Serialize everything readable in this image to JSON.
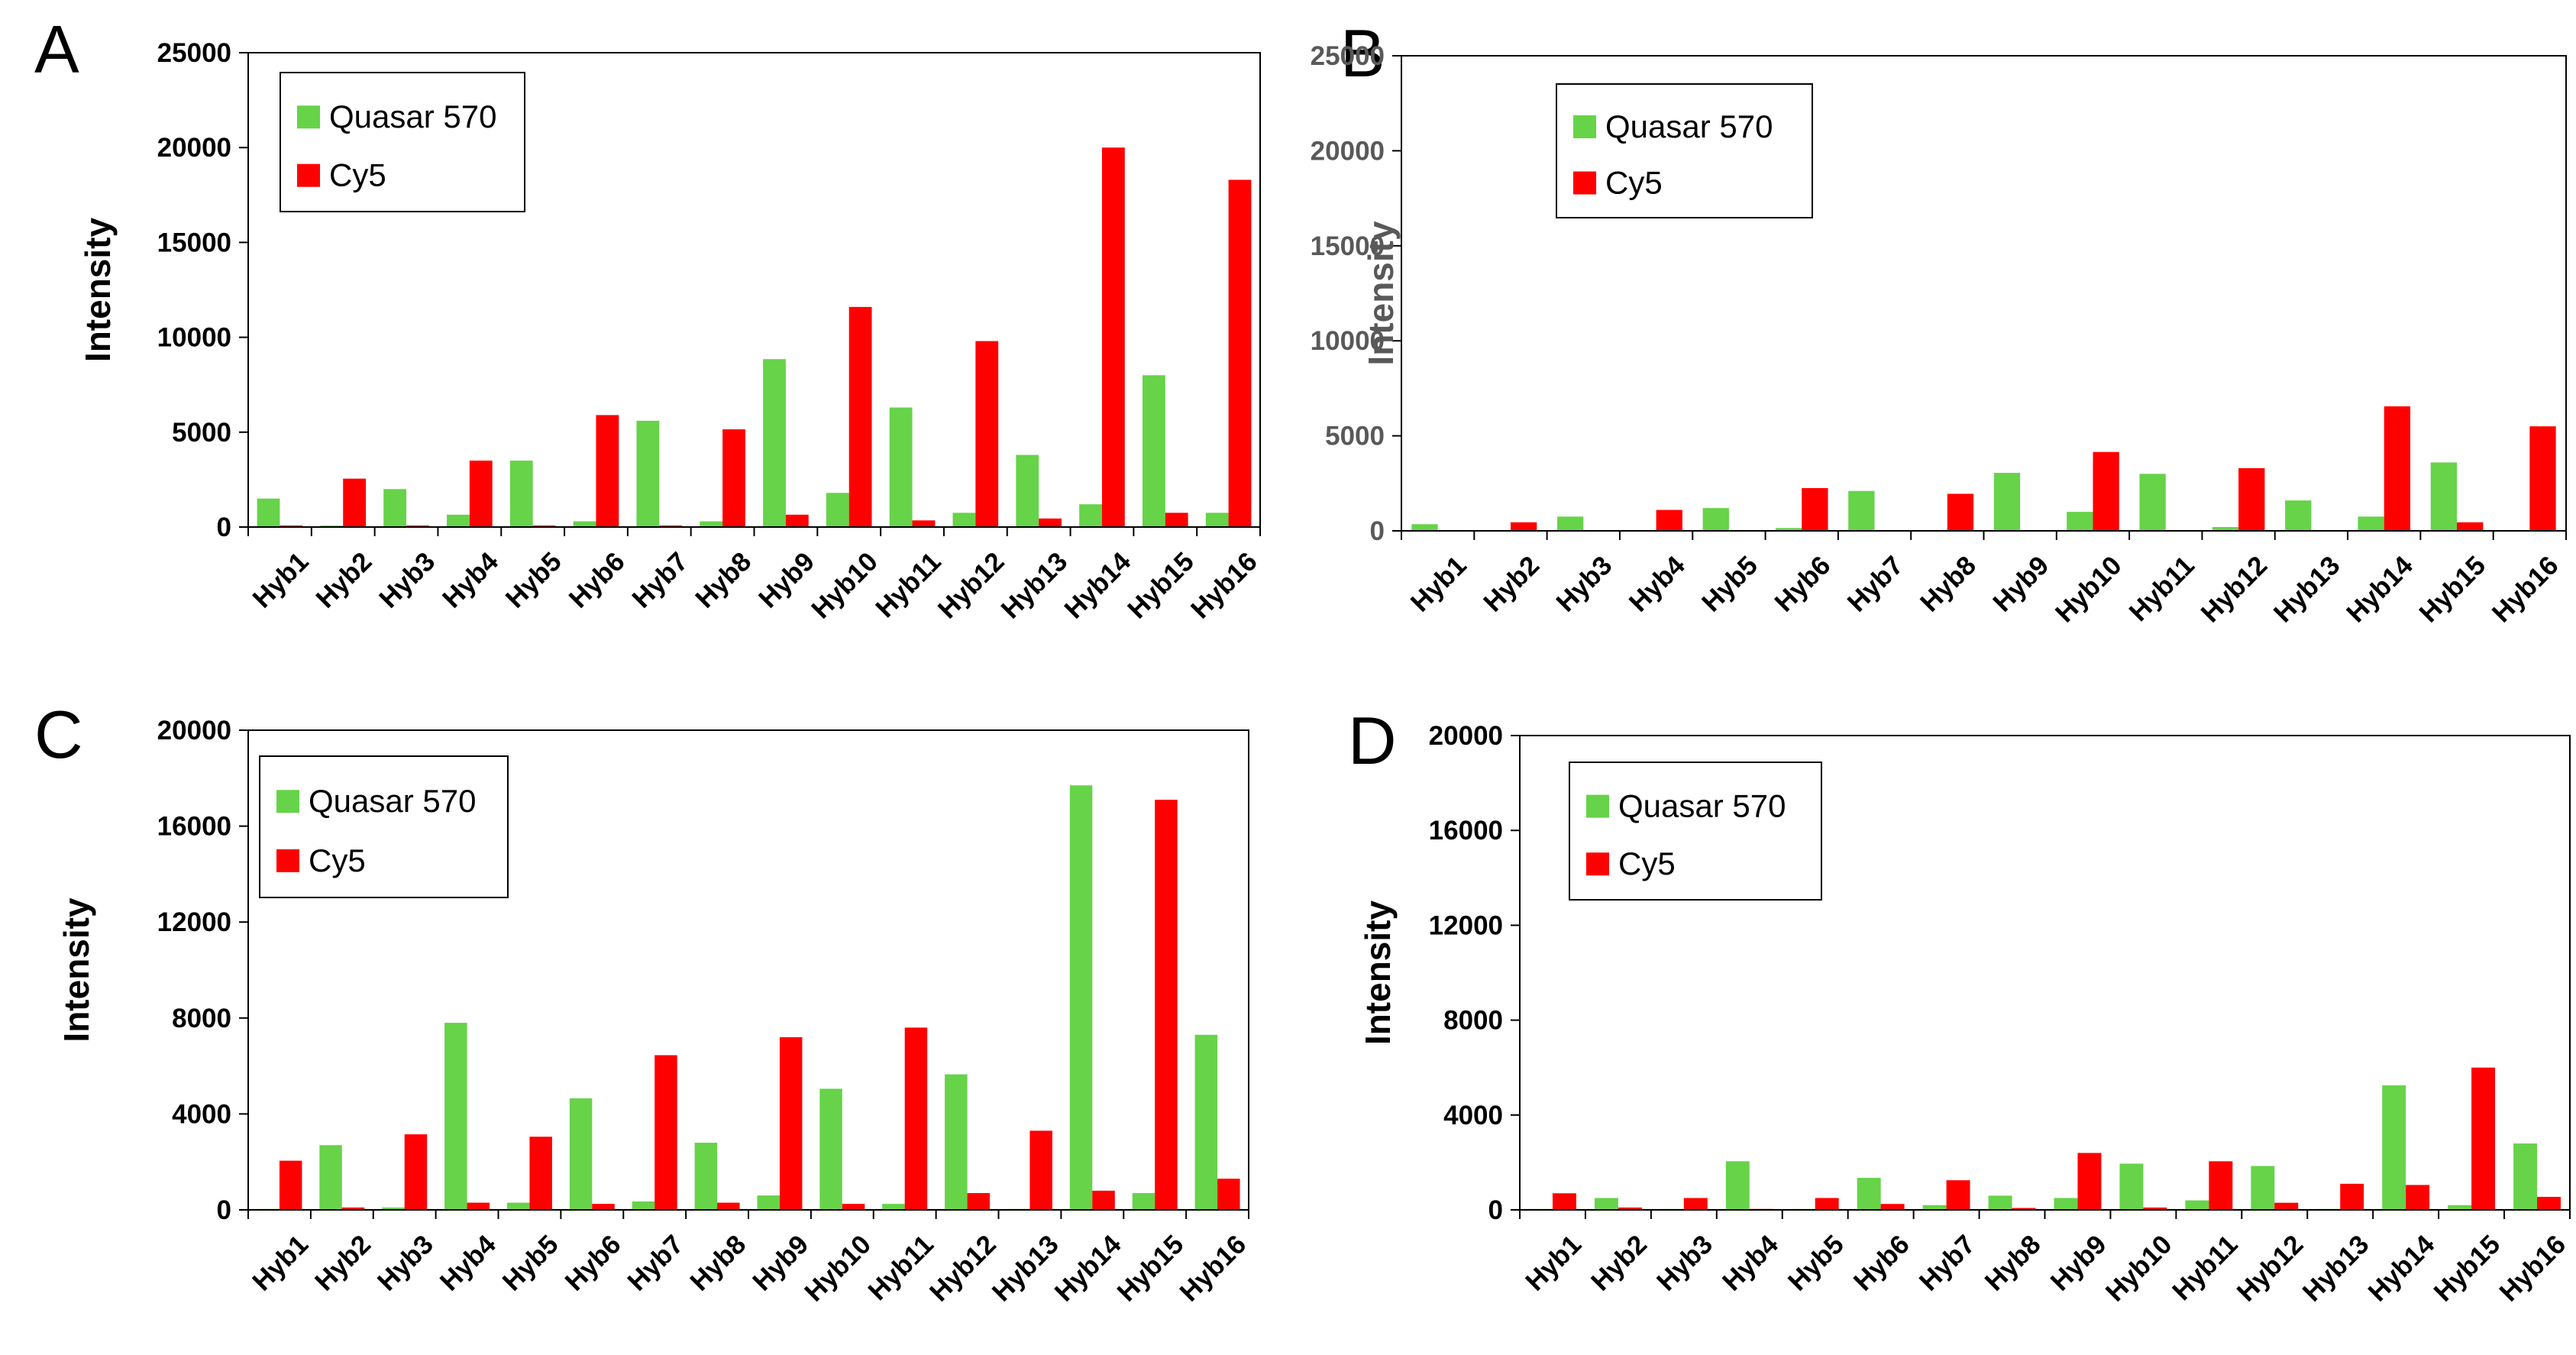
{
  "chart_data": [
    {
      "panel_label": "A",
      "type": "bar",
      "categories": [
        "Hyb1",
        "Hyb2",
        "Hyb3",
        "Hyb4",
        "Hyb5",
        "Hyb6",
        "Hyb7",
        "Hyb8",
        "Hyb9",
        "Hyb10",
        "Hyb11",
        "Hyb12",
        "Hyb13",
        "Hyb14",
        "Hyb15",
        "Hyb16"
      ],
      "series": [
        {
          "name": "Quasar 570",
          "color": "#66d349",
          "values": [
            1500,
            80,
            2000,
            650,
            3500,
            300,
            5600,
            300,
            8850,
            1800,
            6300,
            750,
            3800,
            1200,
            8000,
            750
          ]
        },
        {
          "name": "Cy5",
          "color": "#ff0000",
          "values": [
            80,
            2550,
            80,
            3500,
            80,
            5900,
            80,
            5150,
            650,
            11600,
            350,
            9800,
            450,
            20000,
            750,
            18300
          ]
        }
      ],
      "ylabel": "Intensity",
      "ylim": [
        0,
        25000
      ],
      "yticks": [
        0,
        5000,
        10000,
        15000,
        20000,
        25000
      ],
      "legend_position": "top-left"
    },
    {
      "panel_label": "B",
      "type": "bar",
      "categories": [
        "Hyb1",
        "Hyb2",
        "Hyb3",
        "Hyb4",
        "Hyb5",
        "Hyb6",
        "Hyb7",
        "Hyb8",
        "Hyb9",
        "Hyb10",
        "Hyb11",
        "Hyb12",
        "Hyb13",
        "Hyb14",
        "Hyb15",
        "Hyb16"
      ],
      "series": [
        {
          "name": "Quasar 570",
          "color": "#66d349",
          "values": [
            350,
            40,
            750,
            40,
            1200,
            150,
            2100,
            40,
            3050,
            1000,
            3000,
            200,
            1600,
            750,
            3600,
            40
          ]
        },
        {
          "name": "Cy5",
          "color": "#ff0000",
          "values": [
            40,
            450,
            40,
            1100,
            40,
            2250,
            40,
            1950,
            40,
            4150,
            40,
            3300,
            40,
            6550,
            450,
            5500
          ]
        }
      ],
      "ylabel": "Intensity",
      "ylim": [
        0,
        25000
      ],
      "yticks": [
        0,
        5000,
        10000,
        15000,
        20000,
        25000
      ],
      "legend_position": "top-left"
    },
    {
      "panel_label": "C",
      "type": "bar",
      "categories": [
        "Hyb1",
        "Hyb2",
        "Hyb3",
        "Hyb4",
        "Hyb5",
        "Hyb6",
        "Hyb7",
        "Hyb8",
        "Hyb9",
        "Hyb10",
        "Hyb11",
        "Hyb12",
        "Hyb13",
        "Hyb14",
        "Hyb15",
        "Hyb16"
      ],
      "series": [
        {
          "name": "Quasar 570",
          "color": "#66d349",
          "values": [
            40,
            2700,
            100,
            7800,
            300,
            4650,
            350,
            2800,
            600,
            5050,
            250,
            5650,
            40,
            17700,
            700,
            7300
          ]
        },
        {
          "name": "Cy5",
          "color": "#ff0000",
          "values": [
            2050,
            100,
            3150,
            300,
            3050,
            250,
            6450,
            300,
            7200,
            250,
            7600,
            700,
            3300,
            800,
            17100,
            1300
          ]
        }
      ],
      "ylabel": "Intensity",
      "ylim": [
        0,
        20000
      ],
      "yticks": [
        0,
        4000,
        8000,
        12000,
        16000,
        20000
      ],
      "legend_position": "top-left"
    },
    {
      "panel_label": "D",
      "type": "bar",
      "categories": [
        "Hyb1",
        "Hyb2",
        "Hyb3",
        "Hyb4",
        "Hyb5",
        "Hyb6",
        "Hyb7",
        "Hyb8",
        "Hyb9",
        "Hyb10",
        "Hyb11",
        "Hyb12",
        "Hyb13",
        "Hyb14",
        "Hyb15",
        "Hyb16"
      ],
      "series": [
        {
          "name": "Quasar 570",
          "color": "#66d349",
          "values": [
            40,
            500,
            40,
            2050,
            40,
            1350,
            200,
            600,
            500,
            1950,
            400,
            1850,
            40,
            5250,
            200,
            2800
          ]
        },
        {
          "name": "Cy5",
          "color": "#ff0000",
          "values": [
            700,
            100,
            500,
            40,
            500,
            250,
            1250,
            80,
            2400,
            100,
            2050,
            300,
            1100,
            1050,
            6000,
            550
          ]
        }
      ],
      "ylabel": "Intensity",
      "ylim": [
        0,
        20000
      ],
      "yticks": [
        0,
        4000,
        8000,
        12000,
        16000,
        20000
      ],
      "legend_position": "top-left"
    }
  ]
}
